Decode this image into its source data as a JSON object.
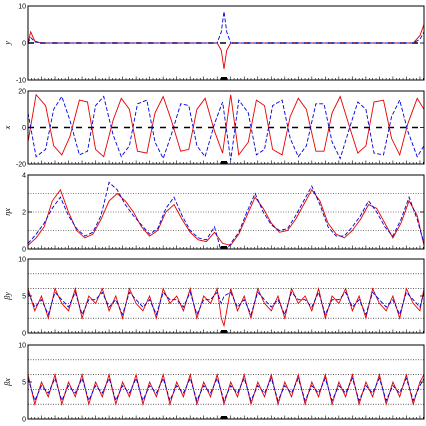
{
  "chart_data": [
    {
      "type": "line",
      "ylabel": "y",
      "ylim": [
        -10,
        10
      ],
      "yticks": [
        -10,
        0,
        10
      ],
      "grid_lines": [],
      "zero_dashed": true,
      "series": [
        {
          "color": "#e60000",
          "style": "solid",
          "x": [
            0,
            2,
            5,
            10,
            50,
            100,
            140,
            143,
            145,
            147,
            150,
            200,
            250,
            285,
            290,
            293
          ],
          "y": [
            0,
            3,
            0.5,
            0,
            0,
            0,
            0,
            -2,
            -7,
            -2,
            0,
            0,
            0,
            0,
            2,
            5
          ]
        },
        {
          "color": "#0000d9",
          "style": "dashed",
          "x": [
            0,
            2,
            5,
            10,
            50,
            100,
            140,
            143,
            145,
            147,
            150,
            200,
            250,
            285,
            290,
            293
          ],
          "y": [
            0,
            1.5,
            0.3,
            0,
            0,
            0,
            0,
            3,
            8.5,
            3,
            0,
            0,
            0,
            0,
            1,
            3
          ]
        }
      ]
    },
    {
      "type": "line",
      "ylabel": "x",
      "ylim": [
        -20,
        20
      ],
      "yticks": [
        -20,
        0,
        20
      ],
      "grid_lines": [],
      "zero_dashed": true,
      "series": [
        {
          "color": "#e60000",
          "style": "solid",
          "x": [
            0,
            6,
            13,
            19,
            25,
            31,
            38,
            44,
            50,
            56,
            63,
            69,
            75,
            81,
            88,
            94,
            100,
            106,
            113,
            119,
            125,
            131,
            138,
            144,
            150,
            156,
            163,
            169,
            175,
            181,
            188,
            194,
            200,
            206,
            213,
            219,
            225,
            231,
            238,
            244,
            250,
            256,
            263,
            269,
            275,
            281,
            288,
            293
          ],
          "y": [
            -8,
            18,
            12,
            -10,
            -15,
            -5,
            15,
            14,
            -12,
            -16,
            4,
            16,
            10,
            -13,
            -14,
            8,
            17,
            4,
            -13,
            -12,
            10,
            16,
            -2,
            -14,
            18,
            -15,
            -8,
            15,
            12,
            -12,
            -15,
            6,
            16,
            10,
            -13,
            -13,
            8,
            17,
            0,
            -14,
            -10,
            14,
            15,
            -6,
            -15,
            2,
            16,
            10
          ]
        },
        {
          "color": "#0000d9",
          "style": "dashed",
          "x": [
            0,
            6,
            13,
            19,
            25,
            31,
            38,
            44,
            50,
            56,
            63,
            69,
            75,
            81,
            88,
            94,
            100,
            106,
            113,
            119,
            125,
            131,
            138,
            144,
            150,
            156,
            163,
            169,
            175,
            181,
            188,
            194,
            200,
            206,
            213,
            219,
            225,
            231,
            238,
            244,
            250,
            256,
            263,
            269,
            275,
            281,
            288,
            293
          ],
          "y": [
            8,
            -16,
            -12,
            10,
            17,
            4,
            -15,
            -13,
            12,
            17,
            -4,
            -16,
            -10,
            13,
            15,
            -8,
            -17,
            -4,
            13,
            12,
            -10,
            -16,
            2,
            14,
            -18,
            15,
            8,
            -15,
            -12,
            12,
            15,
            -6,
            -16,
            -10,
            13,
            13,
            -8,
            -17,
            0,
            14,
            10,
            -14,
            -15,
            6,
            15,
            -2,
            -16,
            -10
          ]
        }
      ]
    },
    {
      "type": "line",
      "ylabel": "ηx",
      "ylim": [
        0,
        4
      ],
      "yticks": [
        0,
        2,
        4
      ],
      "grid_lines": [
        1,
        2,
        3
      ],
      "zero_dashed": false,
      "series": [
        {
          "color": "#e60000",
          "style": "solid",
          "x": [
            0,
            6,
            12,
            18,
            24,
            30,
            36,
            42,
            48,
            54,
            60,
            66,
            72,
            78,
            84,
            90,
            96,
            102,
            108,
            114,
            120,
            126,
            132,
            138,
            144,
            150,
            156,
            162,
            168,
            174,
            180,
            186,
            192,
            198,
            204,
            210,
            216,
            222,
            228,
            234,
            240,
            246,
            252,
            258,
            264,
            270,
            276,
            282,
            288,
            293
          ],
          "y": [
            0.2,
            0.6,
            1.2,
            2.6,
            3.2,
            2.0,
            1.0,
            0.6,
            0.8,
            1.6,
            2.6,
            3.0,
            2.6,
            2.0,
            1.2,
            0.7,
            1.0,
            2.0,
            2.4,
            1.6,
            0.9,
            0.5,
            0.4,
            0.9,
            0.3,
            0.2,
            0.8,
            1.8,
            2.8,
            2.2,
            1.4,
            0.9,
            1.0,
            1.6,
            2.4,
            3.2,
            2.6,
            1.4,
            0.8,
            0.6,
            1.0,
            1.6,
            2.4,
            2.2,
            1.4,
            0.6,
            1.4,
            2.6,
            1.8,
            0.2
          ]
        },
        {
          "color": "#0000d9",
          "style": "dashed",
          "x": [
            0,
            6,
            12,
            18,
            24,
            30,
            36,
            42,
            48,
            54,
            60,
            66,
            72,
            78,
            84,
            90,
            96,
            102,
            108,
            114,
            120,
            126,
            132,
            138,
            144,
            150,
            156,
            162,
            168,
            174,
            180,
            186,
            192,
            198,
            204,
            210,
            216,
            222,
            228,
            234,
            240,
            246,
            252,
            258,
            264,
            270,
            276,
            282,
            288,
            293
          ],
          "y": [
            0.3,
            0.8,
            1.4,
            2.2,
            2.8,
            1.8,
            1.1,
            0.7,
            0.9,
            1.8,
            3.6,
            3.2,
            2.4,
            1.8,
            1.3,
            0.8,
            1.1,
            2.2,
            2.8,
            1.8,
            1.0,
            0.6,
            0.5,
            1.2,
            -0.4,
            0.3,
            0.9,
            2.0,
            3.0,
            2.0,
            1.3,
            1.0,
            1.1,
            1.8,
            2.6,
            3.4,
            2.4,
            1.2,
            0.7,
            0.7,
            1.2,
            1.8,
            2.6,
            2.0,
            1.2,
            0.7,
            1.6,
            2.8,
            1.6,
            0.3
          ]
        }
      ]
    },
    {
      "type": "line",
      "ylabel": "βy",
      "ylim": [
        0,
        10
      ],
      "yticks": [
        0,
        5,
        10
      ],
      "grid_lines": [
        2,
        4,
        6,
        8
      ],
      "zero_dashed": false,
      "series": [
        {
          "color": "#e60000",
          "style": "solid",
          "x": [
            0,
            5,
            10,
            15,
            20,
            25,
            30,
            35,
            40,
            45,
            50,
            55,
            60,
            65,
            70,
            75,
            80,
            85,
            90,
            95,
            100,
            105,
            110,
            115,
            120,
            125,
            130,
            135,
            140,
            143,
            145,
            150,
            155,
            160,
            165,
            170,
            175,
            180,
            185,
            190,
            195,
            200,
            205,
            210,
            215,
            220,
            225,
            230,
            235,
            240,
            245,
            250,
            255,
            260,
            265,
            270,
            275,
            280,
            285,
            290,
            293
          ],
          "y": [
            6,
            3,
            5,
            2,
            6,
            4,
            3,
            6,
            2,
            5,
            4,
            6,
            3,
            5,
            2,
            6,
            4,
            3,
            5,
            2,
            6,
            4,
            5,
            3,
            6,
            2,
            5,
            4,
            6,
            2,
            1,
            6,
            3,
            5,
            2,
            6,
            4,
            3,
            5,
            2,
            6,
            4,
            5,
            3,
            6,
            2,
            5,
            4,
            6,
            3,
            5,
            2,
            6,
            4,
            3,
            5,
            2,
            6,
            4,
            3,
            6
          ]
        },
        {
          "color": "#0000d9",
          "style": "dashed",
          "x": [
            0,
            5,
            10,
            15,
            20,
            25,
            30,
            35,
            40,
            45,
            50,
            55,
            60,
            65,
            70,
            75,
            80,
            85,
            90,
            95,
            100,
            105,
            110,
            115,
            120,
            125,
            130,
            135,
            140,
            143,
            145,
            150,
            155,
            160,
            165,
            170,
            175,
            180,
            185,
            190,
            195,
            200,
            205,
            210,
            215,
            220,
            225,
            230,
            235,
            240,
            245,
            250,
            255,
            260,
            265,
            270,
            275,
            280,
            285,
            290,
            293
          ],
          "y": [
            5.5,
            3.5,
            4.5,
            2.5,
            5.5,
            4.5,
            3.5,
            5.5,
            2.5,
            4.5,
            4.5,
            5.5,
            3.5,
            4.5,
            2.5,
            5.5,
            4.5,
            3.5,
            4.5,
            2.5,
            5.5,
            4.5,
            4.5,
            3.5,
            5.5,
            2.5,
            4.5,
            4.5,
            5.5,
            4,
            5,
            5.5,
            3.5,
            4.5,
            2.5,
            5.5,
            4.5,
            3.5,
            4.5,
            2.5,
            5.5,
            4.5,
            4.5,
            3.5,
            5.5,
            2.5,
            4.5,
            4.5,
            5.5,
            3.5,
            4.5,
            2.5,
            5.5,
            4.5,
            3.5,
            4.5,
            2.5,
            5.5,
            4.5,
            3.5,
            5.5
          ]
        }
      ]
    },
    {
      "type": "line",
      "ylabel": "βx",
      "ylim": [
        0,
        10
      ],
      "yticks": [
        0,
        5,
        10
      ],
      "grid_lines": [
        2,
        4,
        6,
        8
      ],
      "zero_dashed": false,
      "series": [
        {
          "color": "#e60000",
          "style": "solid",
          "x": [
            0,
            5,
            10,
            15,
            20,
            25,
            30,
            35,
            40,
            45,
            50,
            55,
            60,
            65,
            70,
            75,
            80,
            85,
            90,
            95,
            100,
            105,
            110,
            115,
            120,
            125,
            130,
            135,
            140,
            145,
            150,
            155,
            160,
            165,
            170,
            175,
            180,
            185,
            190,
            195,
            200,
            205,
            210,
            215,
            220,
            225,
            230,
            235,
            240,
            245,
            250,
            255,
            260,
            265,
            270,
            275,
            280,
            285,
            290,
            293
          ],
          "y": [
            6,
            2,
            5,
            3,
            6,
            2,
            5,
            3,
            6,
            2,
            5,
            3,
            6,
            2,
            5,
            3,
            6,
            2,
            5,
            3,
            6,
            2,
            5,
            3,
            6,
            2,
            5,
            3,
            6,
            2,
            5,
            3,
            6,
            2,
            5,
            3,
            6,
            2,
            5,
            3,
            6,
            2,
            5,
            3,
            6,
            2,
            5,
            3,
            6,
            2,
            5,
            3,
            6,
            2,
            5,
            3,
            6,
            2,
            5,
            6
          ]
        },
        {
          "color": "#0000d9",
          "style": "dashed",
          "x": [
            0,
            5,
            10,
            15,
            20,
            25,
            30,
            35,
            40,
            45,
            50,
            55,
            60,
            65,
            70,
            75,
            80,
            85,
            90,
            95,
            100,
            105,
            110,
            115,
            120,
            125,
            130,
            135,
            140,
            145,
            150,
            155,
            160,
            165,
            170,
            175,
            180,
            185,
            190,
            195,
            200,
            205,
            210,
            215,
            220,
            225,
            230,
            235,
            240,
            245,
            250,
            255,
            260,
            265,
            270,
            275,
            280,
            285,
            290,
            293
          ],
          "y": [
            5.5,
            2.5,
            4.5,
            3.5,
            5.5,
            2.5,
            4.5,
            3.5,
            5.5,
            2.5,
            4.5,
            3.5,
            5.5,
            2.5,
            4.5,
            3.5,
            5.5,
            2.5,
            4.5,
            3.5,
            5.5,
            2.5,
            4.5,
            3.5,
            5.5,
            2.5,
            4.5,
            3.5,
            5.5,
            2.5,
            4.5,
            3.5,
            5.5,
            2.5,
            4.5,
            3.5,
            5.5,
            2.5,
            4.5,
            3.5,
            5.5,
            2.5,
            4.5,
            3.5,
            5.5,
            2.5,
            4.5,
            3.5,
            5.5,
            2.5,
            4.5,
            3.5,
            5.5,
            2.5,
            4.5,
            3.5,
            5.5,
            2.5,
            4.5,
            5.5
          ]
        }
      ]
    }
  ],
  "shared_x": {
    "xlim": [
      0,
      293
    ],
    "lattice_tick_spacing": 2.5,
    "marker_at": 145
  }
}
